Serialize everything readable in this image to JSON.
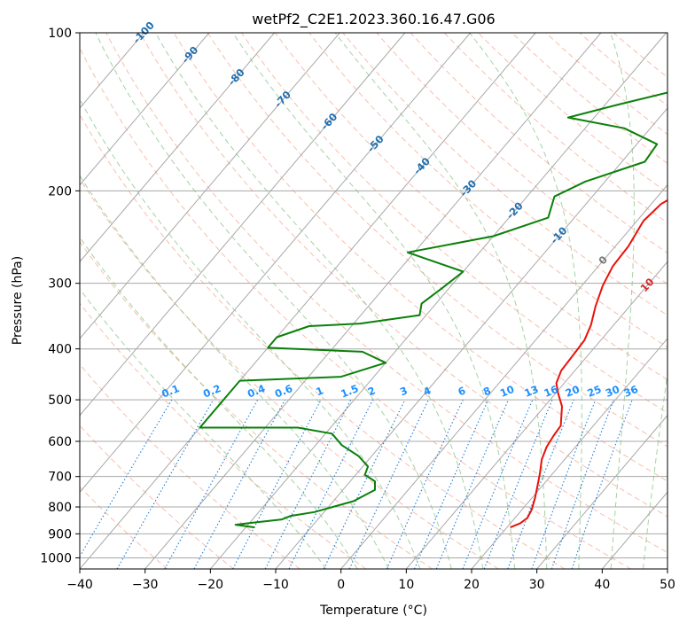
{
  "chart_data": {
    "type": "line",
    "subtype": "skew-T log-P diagram",
    "title": "wetPf2_C2E1.2023.360.16.47.G06",
    "xlabel": "Temperature (°C)",
    "ylabel": "Pressure (hPa)",
    "xlim": [
      -40,
      50
    ],
    "ylim": [
      1050,
      100
    ],
    "y_scale": "log",
    "grid": true,
    "xticks": [
      -40,
      -30,
      -20,
      -10,
      0,
      10,
      20,
      30,
      40,
      50
    ],
    "xtick_labels": [
      "−40",
      "−30",
      "−20",
      "−10",
      "0",
      "10",
      "20",
      "30",
      "40",
      "50"
    ],
    "yticks": [
      1000,
      900,
      800,
      700,
      600,
      500,
      400,
      300,
      200,
      100
    ],
    "ytick_labels": [
      "1000",
      "900",
      "800",
      "700",
      "600",
      "500",
      "400",
      "300",
      "200",
      "100"
    ],
    "colors": {
      "temperature": "#e8120a",
      "dewpoint": "#0a800a",
      "isotherm": "#a8a8a8",
      "dry_adiabat": "#f08a6a",
      "moist_adiabat": "#7dbf7d",
      "mixing_ratio": "#1e7ed8",
      "isotherm_label": "#1f6fb0",
      "dry_adiabat_label": "#d42a2a",
      "zero_label": "#777777",
      "mixing_label": "#1e90ff",
      "moist_boundary": "#d9b99b"
    },
    "isotherm_labels": [
      "-100",
      "-90",
      "-80",
      "-70",
      "-60",
      "-50",
      "-40",
      "-30",
      "-20",
      "-10",
      "0",
      "10",
      "20",
      "30",
      "40"
    ],
    "isotherm_label_values": [
      -100,
      -90,
      -80,
      -70,
      -60,
      -50,
      -40,
      -30,
      -20,
      -10,
      0,
      10,
      20,
      30,
      40
    ],
    "mixing_ratio_labels": [
      "0.1",
      "0.2",
      "0.4",
      "0.6",
      "1",
      "1.5",
      "2",
      "3",
      "4",
      "6",
      "8",
      "10",
      "13",
      "16",
      "20",
      "25",
      "30",
      "36"
    ],
    "mixing_ratio_values": [
      0.1,
      0.2,
      0.4,
      0.6,
      1,
      1.5,
      2,
      3,
      4,
      6,
      8,
      10,
      13,
      16,
      20,
      25,
      30,
      36
    ],
    "series": [
      {
        "points": [
          [
            20.5,
            875
          ],
          [
            21.5,
            860
          ],
          [
            21.9,
            840
          ],
          [
            21.5,
            810
          ],
          [
            20.5,
            770
          ],
          [
            19.3,
            730
          ],
          [
            18.0,
            690
          ],
          [
            16.5,
            650
          ],
          [
            15.6,
            615
          ],
          [
            15.2,
            585
          ],
          [
            15.0,
            560
          ],
          [
            14.0,
            540
          ],
          [
            12.7,
            515
          ],
          [
            10.3,
            485
          ],
          [
            8.8,
            465
          ],
          [
            7.9,
            440
          ],
          [
            7.7,
            410
          ],
          [
            7.5,
            385
          ],
          [
            6.5,
            360
          ],
          [
            4.8,
            332
          ],
          [
            3.2,
            303
          ],
          [
            2.2,
            278
          ],
          [
            2.0,
            255
          ],
          [
            1.0,
            228
          ],
          [
            1.5,
            212
          ],
          [
            3.5,
            198
          ],
          [
            5.5,
            180
          ],
          [
            8.0,
            162
          ],
          [
            12.0,
            148
          ],
          [
            14.2,
            140
          ],
          [
            13.2,
            132
          ],
          [
            12.8,
            121
          ],
          [
            13.4,
            114
          ],
          [
            14.2,
            107
          ],
          [
            14.6,
            100
          ]
        ]
      },
      {
        "points": [
          [
            -18.6,
            875
          ],
          [
            -21.9,
            865
          ],
          [
            -19.5,
            857
          ],
          [
            -15.5,
            845
          ],
          [
            -14.6,
            832
          ],
          [
            -11.5,
            818
          ],
          [
            -6.9,
            780
          ],
          [
            -5.1,
            742
          ],
          [
            -6.2,
            715
          ],
          [
            -8.6,
            695
          ],
          [
            -9.2,
            670
          ],
          [
            -12.0,
            640
          ],
          [
            -16.0,
            610
          ],
          [
            -19.0,
            580
          ],
          [
            -25.0,
            565
          ],
          [
            -40.0,
            565
          ],
          [
            -40.0,
            460
          ],
          [
            -25.0,
            452
          ],
          [
            -20.0,
            425
          ],
          [
            -25.0,
            405
          ],
          [
            -40.0,
            398
          ],
          [
            -40.0,
            380
          ],
          [
            -36.5,
            362
          ],
          [
            -29.0,
            358
          ],
          [
            -21.0,
            345
          ],
          [
            -22.2,
            328
          ],
          [
            -21.0,
            305
          ],
          [
            -20.0,
            285
          ],
          [
            -31.0,
            262
          ],
          [
            -20.0,
            244
          ],
          [
            -14.0,
            225
          ],
          [
            -15.8,
            205
          ],
          [
            -13.0,
            192
          ],
          [
            -6.5,
            176
          ],
          [
            -6.9,
            163
          ],
          [
            -14.0,
            152
          ],
          [
            -24.0,
            145
          ],
          [
            -18.0,
            137
          ],
          [
            -12.0,
            130
          ],
          [
            -8.0,
            118
          ],
          [
            -5.0,
            108
          ],
          [
            -2.8,
            100
          ]
        ]
      }
    ]
  }
}
